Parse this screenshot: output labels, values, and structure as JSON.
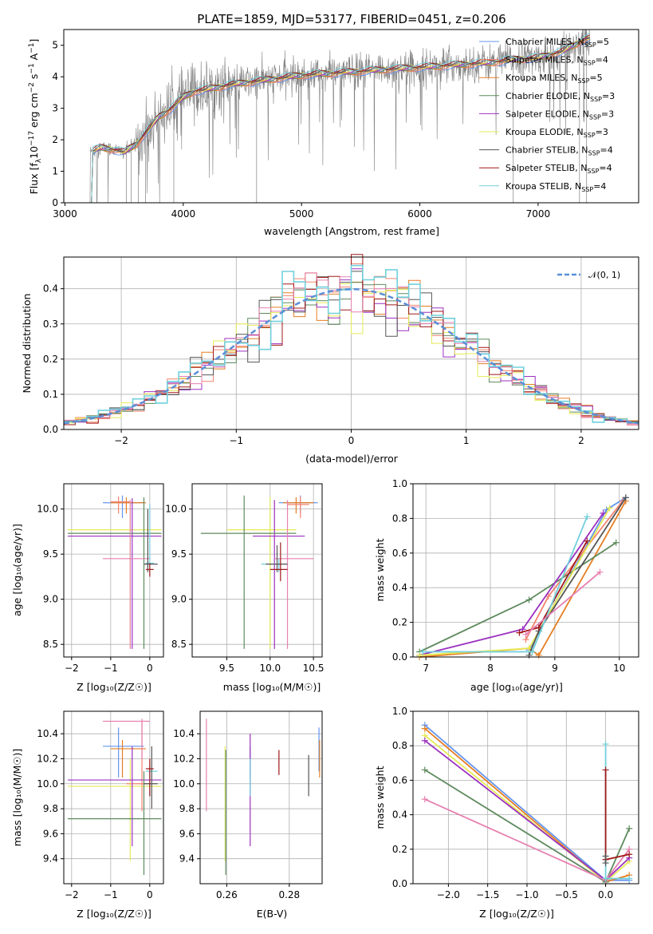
{
  "figure": {
    "title": "PLATE=1859, MJD=53177, FIBERID=0451, z=0.206",
    "colors": {
      "chabrier_miles": "#6495ED",
      "salpeter_miles": "#F4826F",
      "kroupa_miles": "#E67E22",
      "chabrier_elodie": "#5E8A5E",
      "salpeter_elodie": "#9B30C0",
      "kroupa_elodie": "#E6EB55",
      "chabrier_stelib": "#555555",
      "salpeter_stelib": "#A01818",
      "kroupa_stelib": "#70D0DC",
      "pink_series": "#E680B0",
      "data_grey": "#808080"
    }
  },
  "chart_data": [
    {
      "id": "spectrum",
      "type": "line",
      "title": "PLATE=1859, MJD=53177, FIBERID=0451, z=0.206",
      "xlabel": "wavelength [Angstrom, rest frame]",
      "ylabel_parts": [
        "Flux [f",
        "λ",
        "10",
        "−17",
        " erg cm",
        "−2",
        " s",
        "−1",
        " A",
        "−1",
        "]"
      ],
      "xlim": [
        2990,
        7850
      ],
      "ylim": [
        0,
        5.5
      ],
      "xticks": [
        3000,
        4000,
        5000,
        6000,
        7000
      ],
      "yticks": [
        0,
        1,
        2,
        3,
        4,
        5
      ],
      "grid": false,
      "legend_position": "upper-right",
      "legend": [
        {
          "name": "Chabrier MILES, N",
          "sub": "SSP",
          "suffix": "=5",
          "color": "#6495ED"
        },
        {
          "name": "Salpeter MILES, N",
          "sub": "SSP",
          "suffix": "=4",
          "color": "#F4826F"
        },
        {
          "name": "Kroupa MILES, N",
          "sub": "SSP",
          "suffix": "=5",
          "color": "#E67E22"
        },
        {
          "name": "Chabrier ELODIE, N",
          "sub": "SSP",
          "suffix": "=3",
          "color": "#5E8A5E"
        },
        {
          "name": "Salpeter ELODIE, N",
          "sub": "SSP",
          "suffix": "=3",
          "color": "#9B30C0"
        },
        {
          "name": "Kroupa ELODIE, N",
          "sub": "SSP",
          "suffix": "=3",
          "color": "#E6EB55"
        },
        {
          "name": "Chabrier STELIB, N",
          "sub": "SSP",
          "suffix": "=4",
          "color": "#555555"
        },
        {
          "name": "Salpeter STELIB, N",
          "sub": "SSP",
          "suffix": "=4",
          "color": "#A01818"
        },
        {
          "name": "Kroupa STELIB, N",
          "sub": "SSP",
          "suffix": "=4",
          "color": "#70D0DC"
        }
      ],
      "continuum": [
        [
          3210,
          1.6
        ],
        [
          3300,
          1.75
        ],
        [
          3400,
          1.7
        ],
        [
          3500,
          1.6
        ],
        [
          3600,
          1.85
        ],
        [
          3700,
          2.3
        ],
        [
          3800,
          2.75
        ],
        [
          3900,
          3.0
        ],
        [
          4000,
          3.35
        ],
        [
          4100,
          3.55
        ],
        [
          4200,
          3.6
        ],
        [
          4400,
          3.75
        ],
        [
          4600,
          3.85
        ],
        [
          4800,
          3.95
        ],
        [
          5000,
          4.05
        ],
        [
          5200,
          4.1
        ],
        [
          5400,
          4.15
        ],
        [
          5600,
          4.2
        ],
        [
          5800,
          4.25
        ],
        [
          6000,
          4.3
        ],
        [
          6200,
          4.35
        ],
        [
          6400,
          4.4
        ],
        [
          6600,
          4.45
        ],
        [
          6800,
          4.55
        ],
        [
          7000,
          4.6
        ],
        [
          7200,
          4.8
        ],
        [
          7400,
          5.2
        ],
        [
          7450,
          5.25
        ]
      ]
    },
    {
      "id": "residuals",
      "type": "histogram",
      "xlabel": "(data-model)/error",
      "ylabel": "Normed distribution",
      "xlim": [
        -2.5,
        2.5
      ],
      "ylim": [
        0,
        0.49
      ],
      "xticks": [
        -2,
        -1,
        0,
        1,
        2
      ],
      "yticks": [
        0.0,
        0.1,
        0.2,
        0.3,
        0.4
      ],
      "grid": true,
      "legend_position": "upper-right",
      "legend_label": "𝒩(0, 1)",
      "reference_curve": {
        "type": "normal",
        "mean": 0,
        "sigma": 1,
        "color": "#5B8FD6",
        "style": "dashed"
      },
      "bin_width": 0.1
    },
    {
      "id": "age_vs_z",
      "type": "errorbar",
      "xlabel": "Z [log₁₀(Z/Z☉)]",
      "ylabel": "age  [log₁₀(age/yr)]",
      "xlim": [
        -2.2,
        0.35
      ],
      "ylim": [
        8.36,
        10.28
      ],
      "xticks": [
        -2,
        -1,
        0
      ],
      "yticks": [
        8.5,
        9.0,
        9.5,
        10.0
      ],
      "grid": true
    },
    {
      "id": "age_vs_mass",
      "type": "errorbar",
      "xlabel": "mass [log₁₀(M/M☉)]",
      "xlim": [
        9.1,
        10.6
      ],
      "ylim": [
        8.36,
        10.28
      ],
      "xticks": [
        9.5,
        10.0,
        10.5
      ],
      "yticks": [
        8.5,
        9.0,
        9.5,
        10.0
      ],
      "grid": true
    },
    {
      "id": "mass_weight_vs_age",
      "type": "line",
      "xlabel": "age  [log₁₀(age/yr)]",
      "ylabel": "mass weight",
      "xlim": [
        6.8,
        10.3
      ],
      "ylim": [
        0,
        1.0
      ],
      "xticks": [
        7,
        8,
        9,
        10
      ],
      "yticks": [
        0.0,
        0.2,
        0.4,
        0.6,
        0.8,
        1.0
      ],
      "grid": true,
      "series": [
        {
          "color": "#6495ED",
          "x": [
            8.6,
            9.8,
            10.1
          ],
          "y": [
            0.04,
            0.85,
            0.92
          ]
        },
        {
          "color": "#F4826F",
          "x": [
            8.55,
            8.9,
            10.05
          ],
          "y": [
            0.1,
            0.35,
            0.9
          ]
        },
        {
          "color": "#E67E22",
          "x": [
            6.9,
            8.6,
            8.75,
            10.1
          ],
          "y": [
            0.0,
            0.05,
            0.01,
            0.9
          ]
        },
        {
          "color": "#5E8A5E",
          "x": [
            6.9,
            8.6,
            9.95
          ],
          "y": [
            0.03,
            0.33,
            0.66
          ]
        },
        {
          "color": "#9B30C0",
          "x": [
            6.9,
            8.5,
            9.75
          ],
          "y": [
            0.01,
            0.16,
            0.83
          ]
        },
        {
          "color": "#E6EB55",
          "x": [
            6.9,
            8.6,
            9.85
          ],
          "y": [
            0.01,
            0.05,
            0.86
          ]
        },
        {
          "color": "#555555",
          "x": [
            8.6,
            8.75,
            10.1
          ],
          "y": [
            0.01,
            0.15,
            0.92
          ]
        },
        {
          "color": "#A01818",
          "x": [
            8.45,
            8.75,
            9.5
          ],
          "y": [
            0.14,
            0.17,
            0.67
          ]
        },
        {
          "color": "#70D0DC",
          "x": [
            6.95,
            8.65,
            9.5
          ],
          "y": [
            0.03,
            0.03,
            0.81
          ]
        },
        {
          "color": "#E680B0",
          "x": [
            8.55,
            9.7
          ],
          "y": [
            0.13,
            0.49
          ]
        }
      ]
    },
    {
      "id": "mass_vs_z",
      "type": "errorbar",
      "xlabel": "Z [log₁₀(Z/Z☉)]",
      "ylabel": "mass [log₁₀(M/M☉)]",
      "xlim": [
        -2.2,
        0.35
      ],
      "ylim": [
        9.2,
        10.58
      ],
      "xticks": [
        -2,
        -1,
        0
      ],
      "yticks": [
        9.4,
        9.6,
        9.8,
        10.0,
        10.2,
        10.4
      ],
      "grid": true
    },
    {
      "id": "mass_vs_ebv",
      "type": "errorbar",
      "xlabel": "E(B-V)",
      "xlim": [
        0.2515,
        0.2905
      ],
      "ylim": [
        9.2,
        10.58
      ],
      "xticks": [
        0.26,
        0.28
      ],
      "yticks": [
        9.4,
        9.6,
        9.8,
        10.0,
        10.2,
        10.4
      ],
      "grid": true
    },
    {
      "id": "mass_weight_vs_z",
      "type": "line",
      "xlabel": "Z [log₁₀(Z/Z☉)]",
      "ylabel": "mass weight",
      "xlim": [
        -2.45,
        0.42
      ],
      "ylim": [
        0,
        1.0
      ],
      "xticks": [
        -2.0,
        -1.5,
        -1.0,
        -0.5,
        0.0
      ],
      "yticks": [
        0.0,
        0.2,
        0.4,
        0.6,
        0.8,
        1.0
      ],
      "grid": true,
      "series": [
        {
          "color": "#6495ED",
          "x": [
            -2.3,
            0.0,
            0.3
          ],
          "y": [
            0.92,
            0.02,
            0.02
          ]
        },
        {
          "color": "#E67E22",
          "x": [
            -2.3,
            0.0,
            0.3
          ],
          "y": [
            0.9,
            0.01,
            0.05
          ]
        },
        {
          "color": "#E6EB55",
          "x": [
            -2.3,
            0.0,
            0.3
          ],
          "y": [
            0.86,
            0.01,
            0.13
          ]
        },
        {
          "color": "#9B30C0",
          "x": [
            -2.3,
            0.0,
            0.3
          ],
          "y": [
            0.83,
            0.02,
            0.15
          ]
        },
        {
          "color": "#5E8A5E",
          "x": [
            -2.3,
            0.0,
            0.3
          ],
          "y": [
            0.66,
            0.01,
            0.32
          ]
        },
        {
          "color": "#E680B0",
          "x": [
            -2.3,
            0.0,
            0.3
          ],
          "y": [
            0.49,
            0.02,
            0.2
          ]
        },
        {
          "color": "#70D0DC",
          "x": [
            0.0,
            0.0,
            0.3
          ],
          "y": [
            0.81,
            0.03,
            0.03
          ]
        },
        {
          "color": "#A01818",
          "x": [
            0.0,
            0.0,
            0.3
          ],
          "y": [
            0.66,
            0.14,
            0.17
          ]
        },
        {
          "color": "#555555",
          "x": [
            0.0,
            0.0
          ],
          "y": [
            0.16,
            0.12
          ]
        }
      ]
    }
  ]
}
